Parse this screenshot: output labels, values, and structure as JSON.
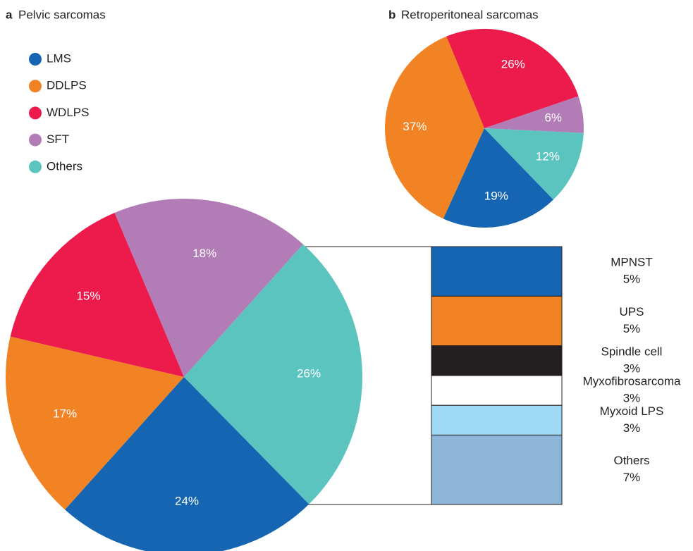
{
  "chart_data": [
    {
      "type": "pie",
      "label": "a",
      "title": "Pelvic sarcomas",
      "categories": [
        "LMS",
        "DDLPS",
        "WDLPS",
        "SFT",
        "Others"
      ],
      "colors": [
        "#1565b2",
        "#f28324",
        "#ec1b4b",
        "#b27cb6",
        "#5bc4bf"
      ],
      "values": [
        24,
        17,
        15,
        18,
        26
      ],
      "value_labels": [
        "24%",
        "17%",
        "15%",
        "18%",
        "26%"
      ],
      "legend": "top-left",
      "breakdown": {
        "type": "bar",
        "categories": [
          "MPNST",
          "UPS",
          "Spindle cell",
          "Myxofibrosarcoma",
          "Myxoid LPS",
          "Others"
        ],
        "colors": [
          "#1565b2",
          "#f28324",
          "#231f20",
          "#ffffff",
          "#a0d9f5",
          "#8db5d8"
        ],
        "values": [
          5,
          5,
          3,
          3,
          3,
          7
        ],
        "value_labels": [
          "5%",
          "5%",
          "3%",
          "3%",
          "3%",
          "7%"
        ]
      }
    },
    {
      "type": "pie",
      "label": "b",
      "title": "Retroperitoneal sarcomas",
      "colors": [
        "#1565b2",
        "#f28324",
        "#ec1b4b",
        "#b27cb6",
        "#5bc4bf"
      ],
      "values": [
        19,
        37,
        26,
        6,
        12
      ],
      "value_labels": [
        "19%",
        "37%",
        "26%",
        "6%",
        "12%"
      ]
    }
  ]
}
